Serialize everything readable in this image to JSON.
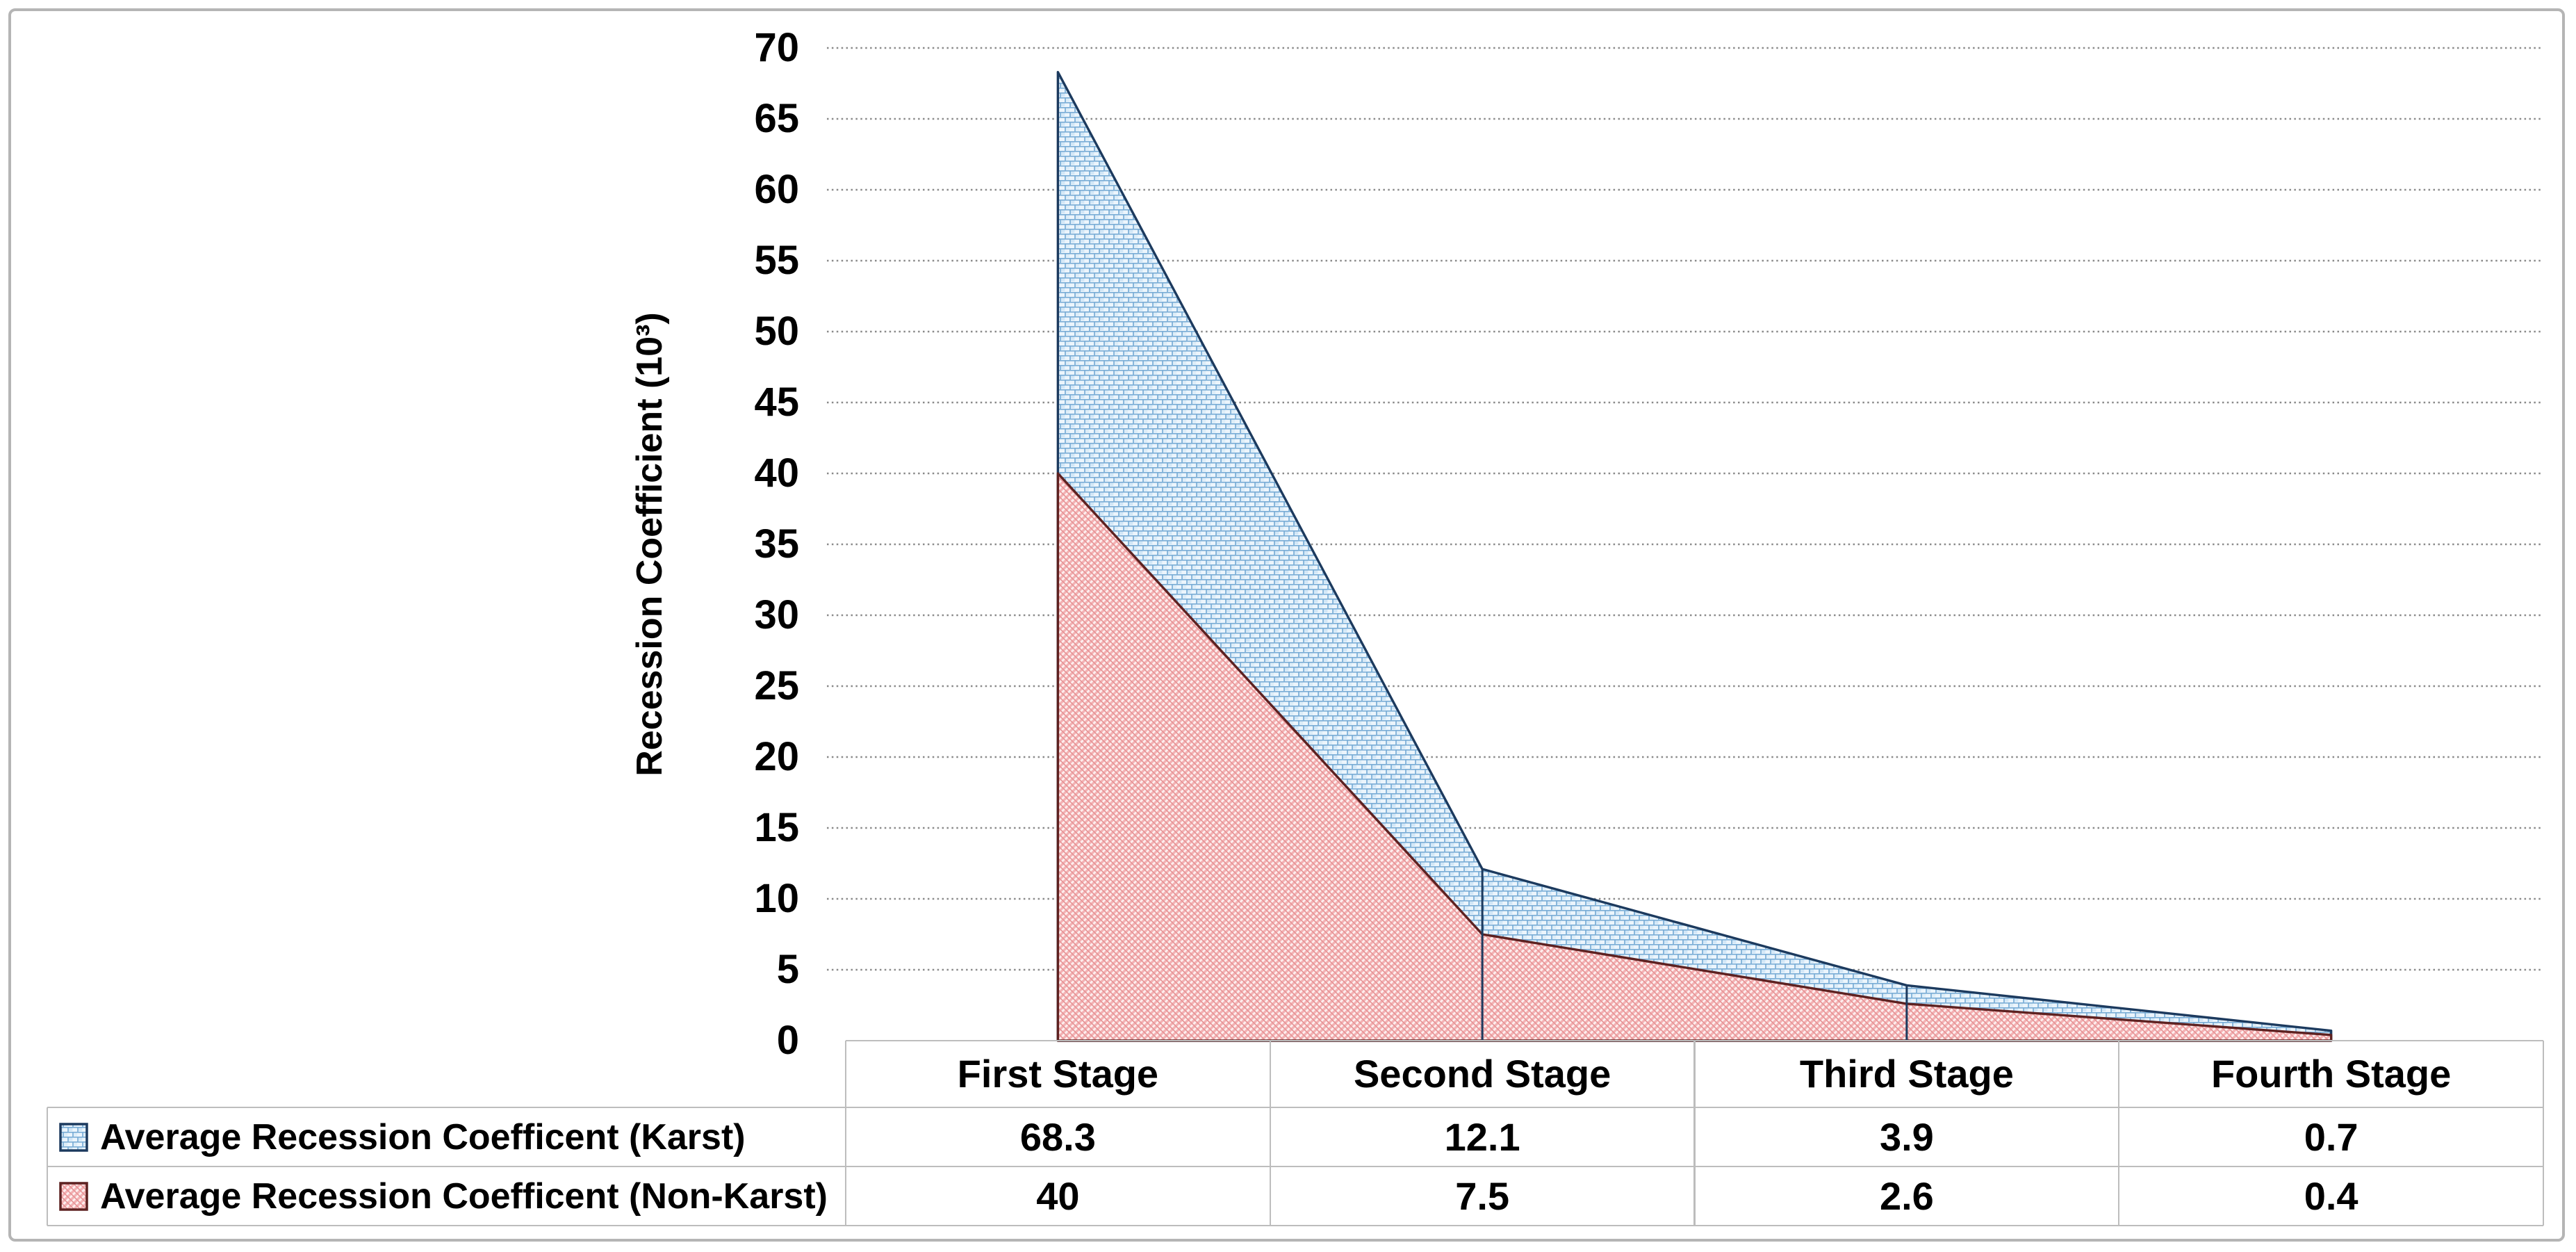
{
  "chart_data": {
    "type": "area",
    "title": "",
    "ylabel": "Recession Coefficient (10³)",
    "xlabel": "",
    "categories": [
      "First Stage",
      "Second Stage",
      "Third Stage",
      "Fourth Stage"
    ],
    "series": [
      {
        "name": "Average Recession Coefficent (Karst)",
        "values": [
          68.3,
          12.1,
          3.9,
          0.7
        ],
        "pattern": "blue-brick",
        "fill_color": "#d8eaf8",
        "outline_color": "#1c3a5e"
      },
      {
        "name": "Average Recession Coefficent (Non-Karst)",
        "values": [
          40,
          7.5,
          2.6,
          0.4
        ],
        "pattern": "red-diagonal-hatch",
        "fill_color": "#f5c3c5",
        "outline_color": "#5d2120",
        "value_display": [
          "40",
          "7.5",
          "2.6",
          "0.4"
        ]
      }
    ],
    "ylim": [
      0,
      70
    ],
    "ytick_step": 5,
    "yticks": [
      0,
      5,
      10,
      15,
      20,
      25,
      30,
      35,
      40,
      45,
      50,
      55,
      60,
      65,
      70
    ],
    "grid": "dotted-horizontal",
    "gridline_color": "#8a8a8a",
    "legend_position": "data-table-left",
    "data_table": true,
    "drop_lines": true,
    "border_color": "#bdbdbd"
  }
}
